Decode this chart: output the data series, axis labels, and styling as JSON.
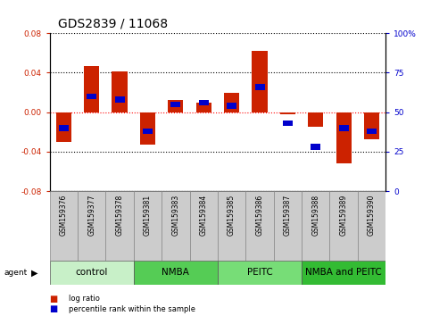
{
  "title": "GDS2839 / 11068",
  "samples": [
    "GSM159376",
    "GSM159377",
    "GSM159378",
    "GSM159381",
    "GSM159383",
    "GSM159384",
    "GSM159385",
    "GSM159386",
    "GSM159387",
    "GSM159388",
    "GSM159389",
    "GSM159390"
  ],
  "log_ratio": [
    -0.03,
    0.047,
    0.041,
    -0.033,
    0.012,
    0.01,
    0.02,
    0.062,
    -0.002,
    -0.015,
    -0.052,
    -0.027
  ],
  "percentile_rank": [
    40,
    60,
    58,
    38,
    55,
    56,
    54,
    66,
    43,
    28,
    40,
    38
  ],
  "groups": [
    {
      "label": "control",
      "start": 0,
      "end": 3,
      "color": "#c8f0c8"
    },
    {
      "label": "NMBA",
      "start": 3,
      "end": 6,
      "color": "#55cc55"
    },
    {
      "label": "PEITC",
      "start": 6,
      "end": 9,
      "color": "#77dd77"
    },
    {
      "label": "NMBA and PEITC",
      "start": 9,
      "end": 12,
      "color": "#33bb33"
    }
  ],
  "ylim": [
    -0.08,
    0.08
  ],
  "ylim2": [
    0,
    100
  ],
  "bar_color_red": "#cc2200",
  "bar_color_blue": "#0000cc",
  "bar_width": 0.55,
  "blue_bar_width": 0.35,
  "yticks_left": [
    -0.08,
    -0.04,
    0.0,
    0.04,
    0.08
  ],
  "yticks_right": [
    0,
    25,
    50,
    75,
    100
  ],
  "title_fontsize": 10,
  "tick_fontsize": 6.5,
  "sample_fontsize": 5.5,
  "group_label_fontsize": 7.5
}
